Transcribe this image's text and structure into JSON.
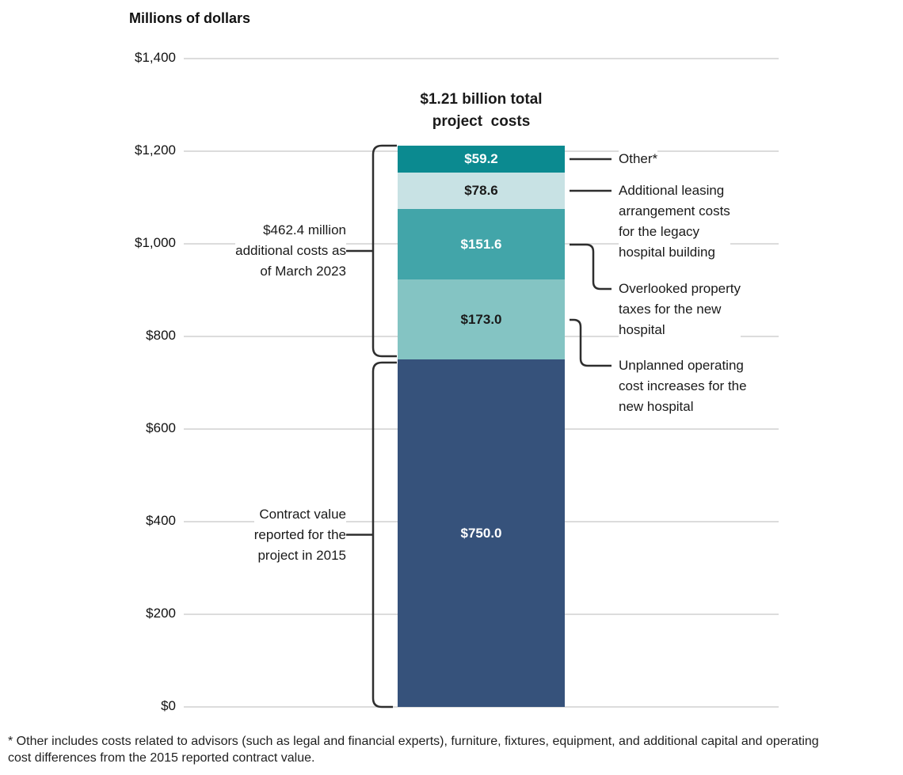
{
  "footnote": "* Other includes costs related to advisors (such as legal and financial experts), furniture, fixtures, equipment, and additional capital and operating\ncost differences from the 2015 reported contract value.",
  "colors": {
    "gridline": "#dcdcdc",
    "connector_line": "#2e2e2e",
    "text": "#1a1a1a",
    "background": "#ffffff"
  },
  "chart_data": {
    "type": "bar",
    "stacked": true,
    "title": "$1.21 billion total\nproject  costs",
    "total_value_millions": 1212.4,
    "total_label": "$1.21 billion total project costs",
    "ylabel": "Millions of dollars",
    "ylim": [
      0,
      1400
    ],
    "grid": true,
    "yticks": [
      {
        "value": 0,
        "label": "$0"
      },
      {
        "value": 200,
        "label": "$200"
      },
      {
        "value": 400,
        "label": "$400"
      },
      {
        "value": 600,
        "label": "$600"
      },
      {
        "value": 800,
        "label": "$800"
      },
      {
        "value": 1000,
        "label": "$1,000"
      },
      {
        "value": 1200,
        "label": "$1,200"
      },
      {
        "value": 1400,
        "label": "$1,400"
      }
    ],
    "segments_bottom_to_top": [
      {
        "name": "Contract value reported for the project in 2015",
        "value": 750.0,
        "label": "$750.0",
        "color": "#36527b",
        "label_color": "#ffffff"
      },
      {
        "name": "Unplanned operating cost increases for the new hospital",
        "value": 173.0,
        "label": "$173.0",
        "color": "#84c4c3",
        "label_color": "#1a1a1a"
      },
      {
        "name": "Overlooked property taxes for the new hospital",
        "value": 151.6,
        "label": "$151.6",
        "color": "#42a5a9",
        "label_color": "#ffffff"
      },
      {
        "name": "Additional leasing arrangement costs for the legacy hospital building",
        "value": 78.6,
        "label": "$78.6",
        "color": "#c8e2e4",
        "label_color": "#1a1a1a"
      },
      {
        "name": "Other*",
        "value": 59.2,
        "label": "$59.2",
        "color": "#0b8a90",
        "label_color": "#ffffff"
      }
    ],
    "annotations": {
      "left_brackets": [
        {
          "text": "$462.4 million\nadditional costs as\nof March 2023",
          "from_value": 750,
          "to_value": 1212.4
        },
        {
          "text": "Contract value\nreported for the\nproject in 2015",
          "from_value": 0,
          "to_value": 750
        }
      ],
      "right_labels": [
        {
          "text": "Other*",
          "segment_index": 4,
          "connector": "straight"
        },
        {
          "text": "Additional leasing\narrangement costs\nfor the legacy\nhospital building",
          "segment_index": 3,
          "connector": "straight"
        },
        {
          "text": "Overlooked property\ntaxes for the new\nhospital",
          "segment_index": 2,
          "connector": "elbow"
        },
        {
          "text": "Unplanned operating\ncost increases for the\nnew hospital",
          "segment_index": 1,
          "connector": "elbow"
        }
      ]
    }
  }
}
